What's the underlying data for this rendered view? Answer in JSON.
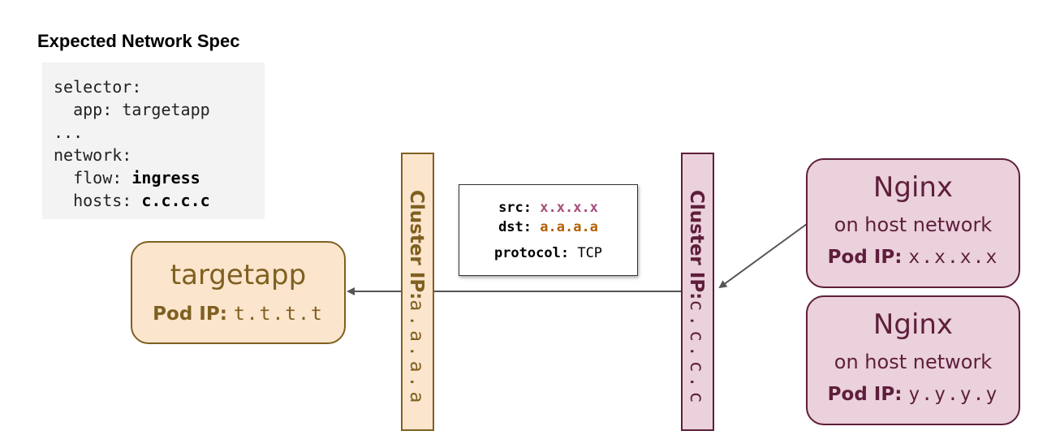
{
  "title": "Expected Network Spec",
  "spec": {
    "selector_key": "selector:",
    "app_key": "app:",
    "app_value": "targetapp",
    "ellipsis": "...",
    "network_key": "network:",
    "flow_key": "flow:",
    "flow_value": "ingress",
    "hosts_key": "hosts:",
    "hosts_value": "c.c.c.c"
  },
  "target": {
    "name": "targetapp",
    "pod_ip_label": "Pod IP:",
    "pod_ip": "t.t.t.t"
  },
  "cluster_ip_left": {
    "label": "Cluster IP:",
    "value": "a.a.a.a"
  },
  "cluster_ip_right": {
    "label": "Cluster IP:",
    "value": "c.c.c.c"
  },
  "packet": {
    "src_label": "src:",
    "src": "x.x.x.x",
    "dst_label": "dst:",
    "dst": "a.a.a.a",
    "protocol_label": "protocol:",
    "protocol": "TCP"
  },
  "nginx": [
    {
      "name": "Nginx",
      "sub": "on host network",
      "pod_ip_label": "Pod IP:",
      "pod_ip": "x.x.x.x"
    },
    {
      "name": "Nginx",
      "sub": "on host network",
      "pod_ip_label": "Pod IP:",
      "pod_ip": "y.y.y.y"
    }
  ],
  "colors": {
    "target_fill": "#fbe5cd",
    "target_stroke": "#7f6020",
    "nginx_fill": "#ead1dc",
    "nginx_stroke": "#5e1e3a",
    "src_color": "#a64d79",
    "dst_color": "#b45f06",
    "arrow": "#555555"
  }
}
